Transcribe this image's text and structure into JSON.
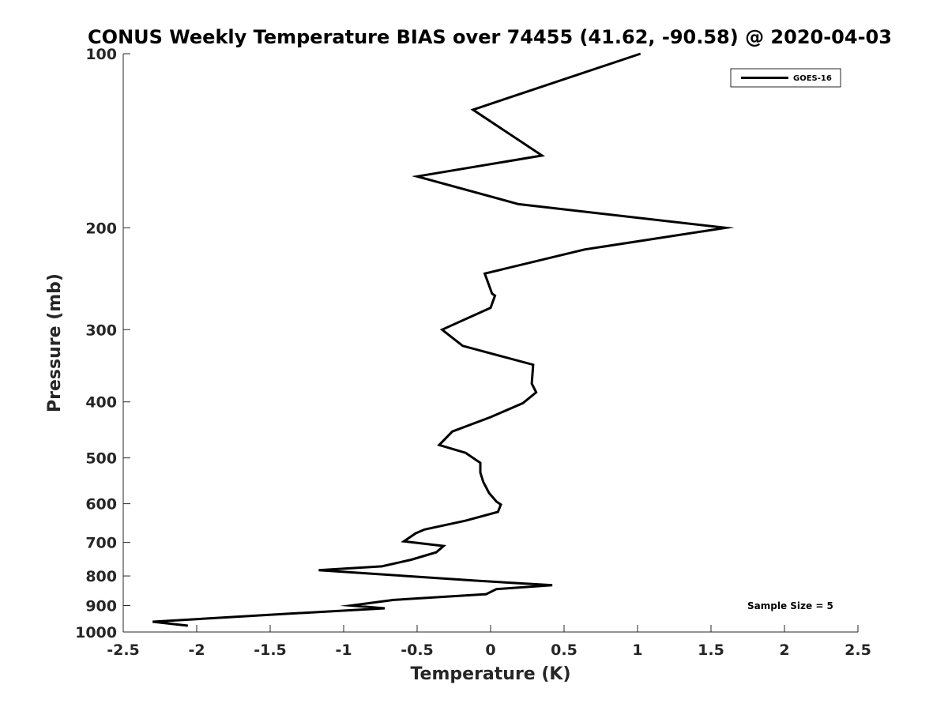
{
  "chart_data": {
    "type": "line",
    "title": "CONUS Weekly Temperature BIAS over 74455 (41.62, -90.58) @ 2020-04-03",
    "xlabel": "Temperature (K)",
    "ylabel": "Pressure (mb)",
    "xlim": [
      -2.5,
      2.5
    ],
    "ylim": [
      100,
      1000
    ],
    "y_scale": "log",
    "y_reversed": true,
    "x_ticks": [
      -2.5,
      -2,
      -1.5,
      -1,
      -0.5,
      0,
      0.5,
      1,
      1.5,
      2,
      2.5
    ],
    "x_tick_labels": [
      "-2.5",
      "-2",
      "-1.5",
      "-1",
      "-0.5",
      "0",
      "0.5",
      "1",
      "1.5",
      "2",
      "2.5"
    ],
    "y_ticks": [
      100,
      200,
      300,
      400,
      500,
      600,
      700,
      800,
      900,
      1000
    ],
    "y_tick_labels": [
      "100",
      "200",
      "300",
      "400",
      "500",
      "600",
      "700",
      "800",
      "900",
      "1000"
    ],
    "grid": false,
    "legend_position": "top-right",
    "annotation": "Sample Size = 5",
    "series": [
      {
        "name": "GOES-16",
        "color": "#000000",
        "points": [
          [
            1.02,
            100
          ],
          [
            -0.12,
            125
          ],
          [
            0.35,
            150
          ],
          [
            -0.5,
            163
          ],
          [
            0.19,
            182
          ],
          [
            1.6,
            200
          ],
          [
            0.64,
            218
          ],
          [
            -0.04,
            240
          ],
          [
            0.01,
            260
          ],
          [
            0.03,
            262
          ],
          [
            0.0,
            275
          ],
          [
            -0.33,
            300
          ],
          [
            -0.19,
            320
          ],
          [
            0.29,
            345
          ],
          [
            0.28,
            372
          ],
          [
            0.31,
            385
          ],
          [
            0.22,
            402
          ],
          [
            0.0,
            425
          ],
          [
            -0.26,
            450
          ],
          [
            -0.35,
            475
          ],
          [
            -0.17,
            490
          ],
          [
            -0.07,
            510
          ],
          [
            -0.07,
            530
          ],
          [
            -0.05,
            550
          ],
          [
            -0.01,
            575
          ],
          [
            0.04,
            595
          ],
          [
            0.07,
            602
          ],
          [
            0.05,
            620
          ],
          [
            -0.17,
            642
          ],
          [
            -0.45,
            665
          ],
          [
            -0.51,
            675
          ],
          [
            -0.59,
            697
          ],
          [
            -0.32,
            710
          ],
          [
            -0.37,
            728
          ],
          [
            -0.54,
            750
          ],
          [
            -0.74,
            770
          ],
          [
            -1.17,
            782
          ],
          [
            -0.1,
            815
          ],
          [
            0.42,
            830
          ],
          [
            0.04,
            843
          ],
          [
            -0.03,
            860
          ],
          [
            -0.66,
            880
          ],
          [
            -0.95,
            900
          ],
          [
            -0.72,
            910
          ],
          [
            -1.38,
            930
          ],
          [
            -2.3,
            960
          ],
          [
            -2.06,
            975
          ]
        ]
      }
    ]
  }
}
